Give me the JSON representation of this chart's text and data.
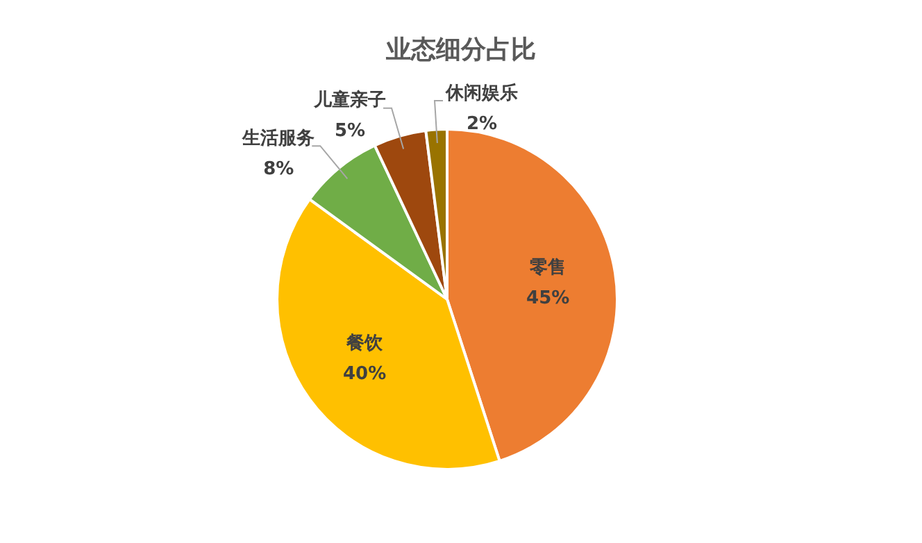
{
  "chart_data": {
    "type": "pie",
    "title": "业态细分占比",
    "categories": [
      "零售",
      "餐饮",
      "生活服务",
      "儿童亲子",
      "休闲娱乐"
    ],
    "values": [
      45,
      40,
      8,
      5,
      2
    ],
    "value_labels": [
      "45%",
      "40%",
      "8%",
      "5%",
      "2%"
    ],
    "colors": [
      "#ed7d31",
      "#ffc000",
      "#70ad47",
      "#9e480e",
      "#997300"
    ],
    "legend": false
  }
}
